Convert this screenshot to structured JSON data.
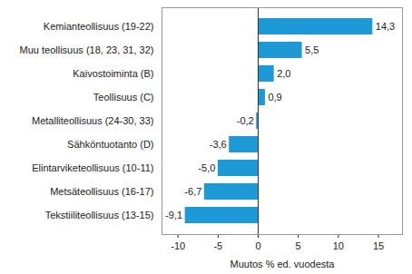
{
  "chart_data": {
    "type": "bar",
    "orientation": "horizontal",
    "categories": [
      "Kemianteollisuus (19-22)",
      "Muu teollisuus (18, 23, 31, 32)",
      "Kaivostoiminta (B)",
      "Teollisuus (C)",
      "Metalliteollisuus (24-30, 33)",
      "Sähköntuotanto (D)",
      "Elintarviketeollisuus (10-11)",
      "Metsäteollisuus (16-17)",
      "Tekstiiliteollisuus (13-15)"
    ],
    "values": [
      14.3,
      5.5,
      2.0,
      0.9,
      -0.2,
      -3.6,
      -5.0,
      -6.7,
      -9.1
    ],
    "value_labels": [
      "14,3",
      "5,5",
      "2,0",
      "0,9",
      "-0,2",
      "-3,6",
      "-5,0",
      "-6,7",
      "-9,1"
    ],
    "data_labels": true,
    "color": "#1d9ad6",
    "x_label": "Muutos % ed. vuodesta",
    "xlim": [
      -12,
      18
    ],
    "xticks": [
      -10,
      -5,
      0,
      5,
      10,
      15
    ],
    "grid": false
  }
}
